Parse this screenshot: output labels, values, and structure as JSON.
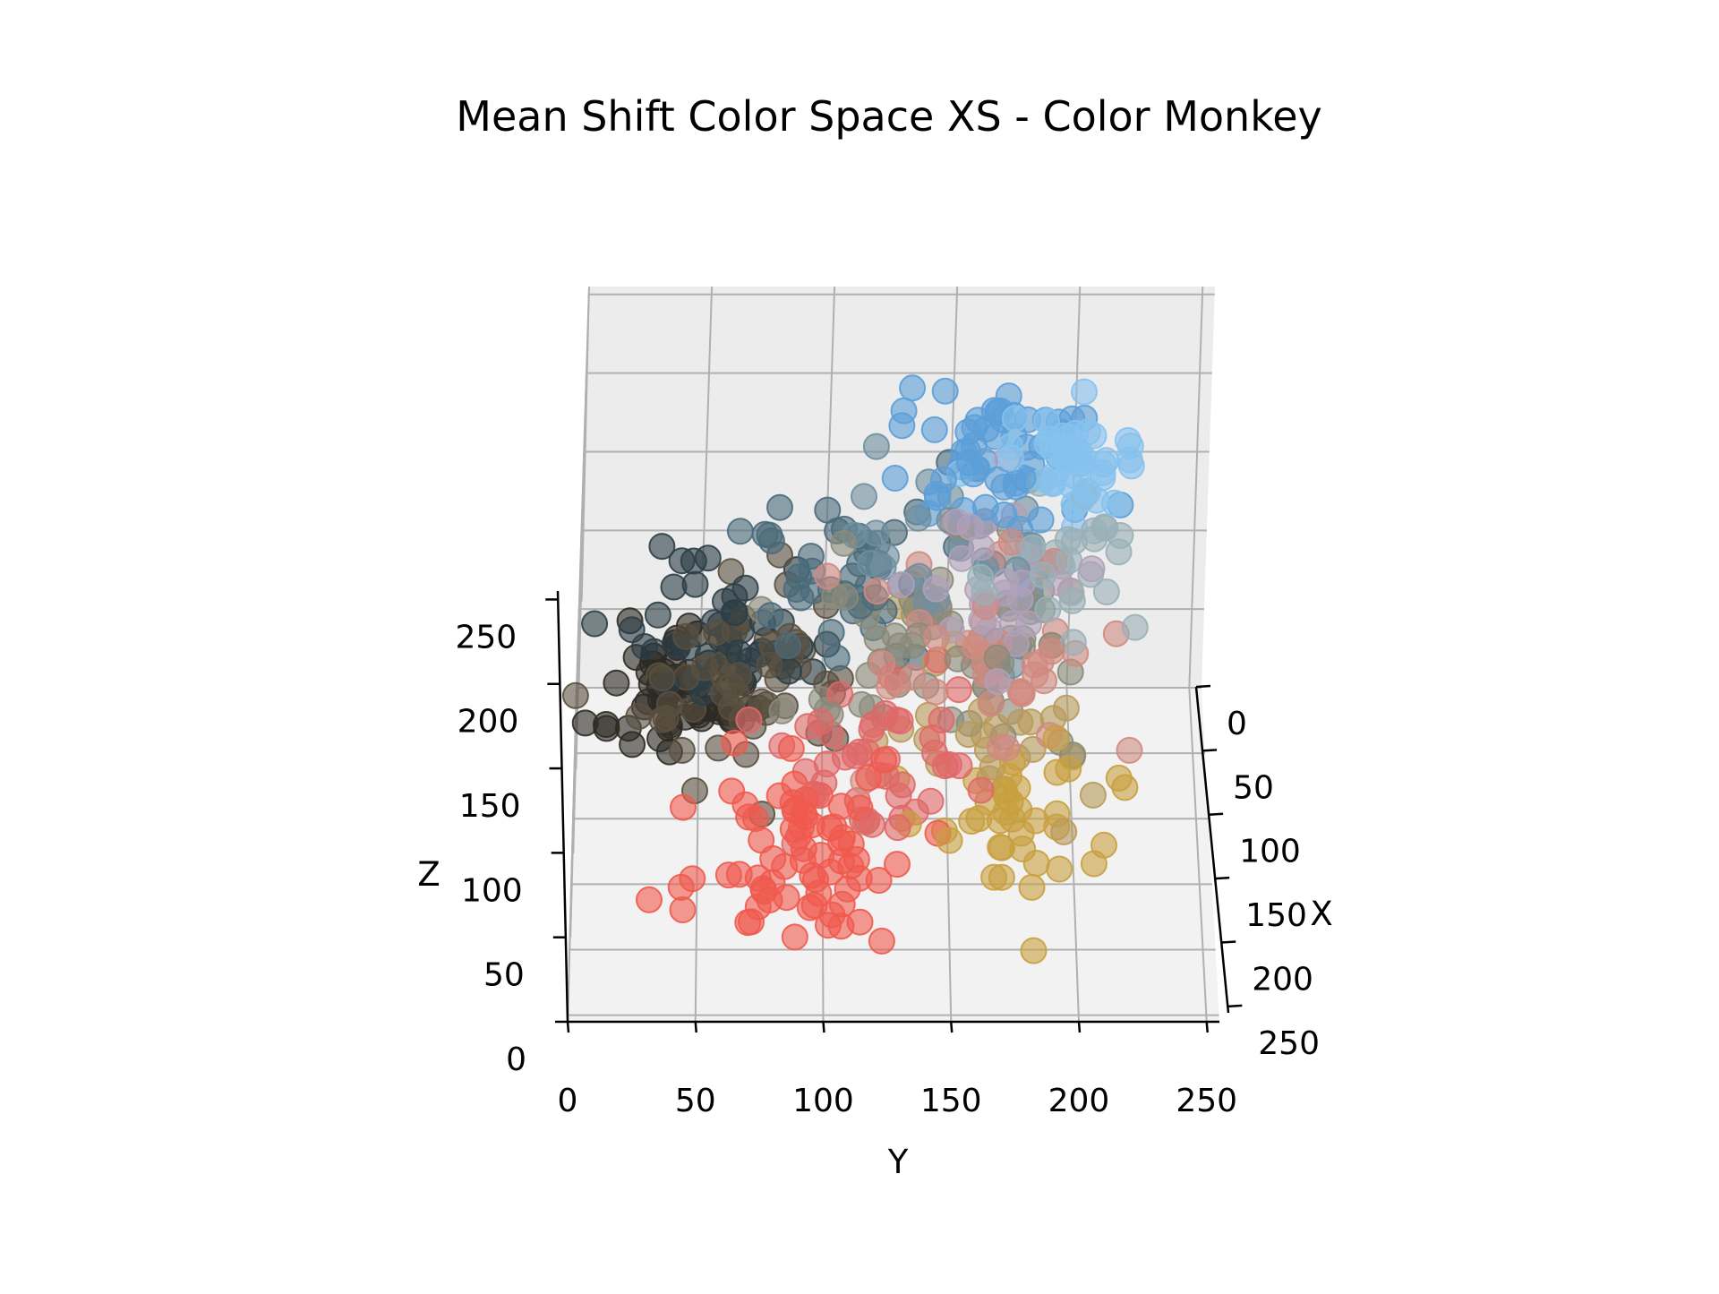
{
  "chart_data": {
    "type": "scatter",
    "title": "Mean Shift Color Space XS - Color Monkey",
    "projection": "3d",
    "xlabel": "X",
    "ylabel": "Y",
    "zlabel": "Z",
    "xlim": [
      0,
      255
    ],
    "ylim": [
      0,
      255
    ],
    "zlim": [
      0,
      255
    ],
    "x_ticks": [
      "0",
      "50",
      "100",
      "150",
      "200",
      "250"
    ],
    "y_ticks": [
      "0",
      "50",
      "100",
      "150",
      "200",
      "250"
    ],
    "z_ticks": [
      "0",
      "50",
      "100",
      "150",
      "200",
      "250"
    ],
    "grid": true,
    "point_alpha": 0.6,
    "clusters": [
      {
        "color": "#f05a4e",
        "center": [
          240,
          90,
          80
        ],
        "spread": 22,
        "count": 70
      },
      {
        "color": "#e06868",
        "center": [
          200,
          120,
          110
        ],
        "spread": 22,
        "count": 45
      },
      {
        "color": "#c8a040",
        "center": [
          200,
          175,
          70
        ],
        "spread": 20,
        "count": 40
      },
      {
        "color": "#b89a5a",
        "center": [
          170,
          160,
          100
        ],
        "spread": 20,
        "count": 25
      },
      {
        "color": "#d08a80",
        "center": [
          175,
          165,
          150
        ],
        "spread": 25,
        "count": 45
      },
      {
        "color": "#b0a0b8",
        "center": [
          160,
          175,
          185
        ],
        "spread": 22,
        "count": 30
      },
      {
        "color": "#8a8a7a",
        "center": [
          135,
          145,
          130
        ],
        "spread": 28,
        "count": 60
      },
      {
        "color": "#5a5040",
        "center": [
          70,
          75,
          60
        ],
        "spread": 22,
        "count": 55
      },
      {
        "color": "#2d2a24",
        "center": [
          40,
          40,
          30
        ],
        "spread": 16,
        "count": 60
      },
      {
        "color": "#2c3e46",
        "center": [
          50,
          65,
          75
        ],
        "spread": 20,
        "count": 45
      },
      {
        "color": "#4a6a7a",
        "center": [
          80,
          110,
          125
        ],
        "spread": 24,
        "count": 45
      },
      {
        "color": "#6f8fa0",
        "center": [
          120,
          150,
          170
        ],
        "spread": 22,
        "count": 35
      },
      {
        "color": "#9ab0b8",
        "center": [
          170,
          200,
          200
        ],
        "spread": 18,
        "count": 25
      },
      {
        "color": "#5b9fd8",
        "center": [
          110,
          170,
          225
        ],
        "spread": 20,
        "count": 55
      },
      {
        "color": "#86c2ee",
        "center": [
          140,
          195,
          240
        ],
        "spread": 14,
        "count": 45
      }
    ]
  }
}
